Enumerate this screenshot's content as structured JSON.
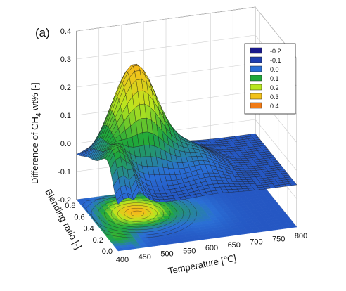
{
  "chart_data": {
    "type": "surface3d",
    "panel_label": "(a)",
    "zlabel": "Difference of CH",
    "zlabel_sub": "4",
    "zlabel_rest": " wt% [-]",
    "xlabel": "Temperature [℃]",
    "ylabel": "Blending ratio [-]",
    "x_ticks": [
      "400",
      "450",
      "500",
      "550",
      "600",
      "650",
      "700",
      "750",
      "800"
    ],
    "y_ticks": [
      "0.0",
      "0.2",
      "0.4",
      "0.6",
      "0.8"
    ],
    "z_ticks": [
      "-0.2",
      "-0.1",
      "0.0",
      "0.1",
      "0.2",
      "0.3",
      "0.4"
    ],
    "x_range": [
      400,
      800
    ],
    "y_range": [
      0,
      0.9
    ],
    "z_range": [
      -0.2,
      0.4
    ],
    "legend": {
      "position": "top-right",
      "entries": [
        {
          "label": "-0.2",
          "color": "#1a1a8c"
        },
        {
          "label": "-0.1",
          "color": "#1f3fb0"
        },
        {
          "label": "0.0",
          "color": "#2a6fd6"
        },
        {
          "label": "0.1",
          "color": "#1fa83a"
        },
        {
          "label": "0.2",
          "color": "#b8e61e"
        },
        {
          "label": "0.3",
          "color": "#f2c21a"
        },
        {
          "label": "0.4",
          "color": "#f07a14"
        }
      ]
    },
    "surface_features": {
      "peak": {
        "temperature": 500,
        "blending_ratio": 0.6,
        "value": 0.32
      },
      "ridge_low_ratio": {
        "temperature": 420,
        "blending_ratio": 0.2,
        "value": 0.14
      },
      "baseline_high_temperature": -0.05
    },
    "grid": true,
    "contour_projection": true
  }
}
